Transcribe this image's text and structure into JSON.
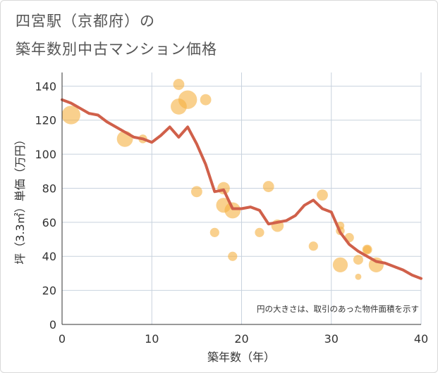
{
  "header": {
    "title_line1": "四宮駅（京都府）の",
    "title_line2": "築年数別中古マンション価格"
  },
  "chart_data": {
    "type": "scatter",
    "title": "四宮駅（京都府）の築年数別中古マンション価格",
    "xlabel": "築年数（年）",
    "ylabel": "坪（3.3㎡）単価（万円）",
    "xlim": [
      0,
      40
    ],
    "ylim": [
      0,
      148
    ],
    "x_ticks": [
      0,
      10,
      20,
      30,
      40
    ],
    "y_ticks": [
      0,
      20,
      40,
      60,
      80,
      100,
      120,
      140
    ],
    "grid": true,
    "annotation": "円の大きさは、取引のあった物件面積を示す",
    "colors": {
      "bubble": "#f5b041",
      "trend": "#d0604a",
      "grid": "#c8d2de",
      "plot_bg": "#ffffff"
    },
    "bubbles": [
      {
        "x": 1,
        "y": 123,
        "size": 3.0
      },
      {
        "x": 7,
        "y": 109,
        "size": 2.6
      },
      {
        "x": 9,
        "y": 109,
        "size": 1.4
      },
      {
        "x": 13,
        "y": 141,
        "size": 1.8
      },
      {
        "x": 13,
        "y": 128,
        "size": 2.6
      },
      {
        "x": 14,
        "y": 132,
        "size": 3.0
      },
      {
        "x": 16,
        "y": 132,
        "size": 1.8
      },
      {
        "x": 15,
        "y": 78,
        "size": 1.8
      },
      {
        "x": 18,
        "y": 80,
        "size": 2.0
      },
      {
        "x": 18,
        "y": 70,
        "size": 2.4
      },
      {
        "x": 19,
        "y": 67,
        "size": 2.6
      },
      {
        "x": 17,
        "y": 54,
        "size": 1.5
      },
      {
        "x": 19,
        "y": 40,
        "size": 1.5
      },
      {
        "x": 22,
        "y": 54,
        "size": 1.5
      },
      {
        "x": 23,
        "y": 81,
        "size": 1.8
      },
      {
        "x": 24,
        "y": 58,
        "size": 2.0
      },
      {
        "x": 28,
        "y": 46,
        "size": 1.5
      },
      {
        "x": 29,
        "y": 76,
        "size": 1.8
      },
      {
        "x": 31,
        "y": 58,
        "size": 1.3
      },
      {
        "x": 31,
        "y": 55,
        "size": 1.4
      },
      {
        "x": 32,
        "y": 51,
        "size": 1.5
      },
      {
        "x": 31,
        "y": 35,
        "size": 2.4
      },
      {
        "x": 33,
        "y": 38,
        "size": 1.6
      },
      {
        "x": 34,
        "y": 44,
        "size": 1.6
      },
      {
        "x": 34,
        "y": 44,
        "size": 1.3
      },
      {
        "x": 33,
        "y": 28,
        "size": 1.0
      },
      {
        "x": 35,
        "y": 35,
        "size": 2.4
      }
    ],
    "trend": {
      "x": [
        0,
        1,
        2,
        3,
        4,
        5,
        6,
        7,
        8,
        9,
        10,
        11,
        12,
        13,
        14,
        15,
        16,
        17,
        18,
        19,
        20,
        21,
        22,
        23,
        24,
        25,
        26,
        27,
        28,
        29,
        30,
        31,
        32,
        33,
        34,
        35,
        36,
        37,
        38,
        39,
        40
      ],
      "y": [
        132,
        130,
        127,
        124,
        123,
        119,
        116,
        113,
        110,
        109,
        107,
        111,
        116,
        110,
        116,
        106,
        94,
        78,
        79,
        68,
        68,
        69,
        67,
        59,
        60,
        61,
        64,
        70,
        73,
        68,
        66,
        54,
        47,
        43,
        40,
        37,
        36,
        34,
        32,
        29,
        27
      ]
    }
  }
}
